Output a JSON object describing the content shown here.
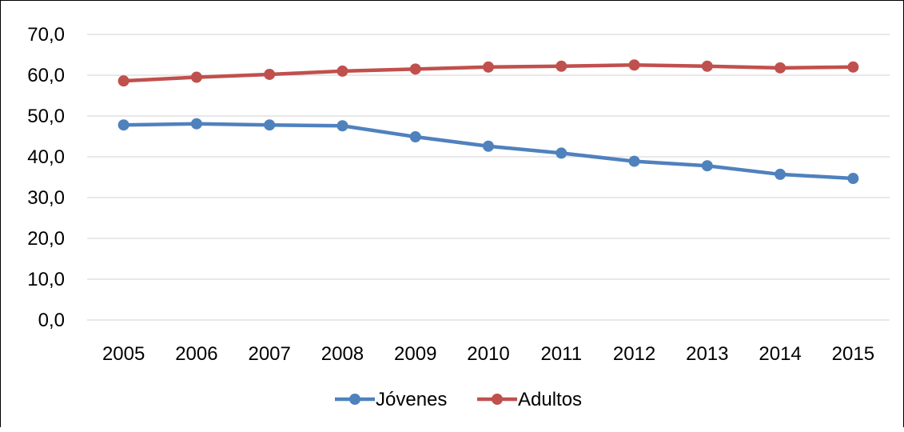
{
  "chart_data": {
    "type": "line",
    "categories": [
      "2005",
      "2006",
      "2007",
      "2008",
      "2009",
      "2010",
      "2011",
      "2012",
      "2013",
      "2014",
      "2015"
    ],
    "series": [
      {
        "name": "Jóvenes",
        "color": "#4f81bd",
        "values": [
          47.8,
          48.1,
          47.8,
          47.6,
          44.9,
          42.6,
          40.9,
          38.9,
          37.8,
          35.7,
          34.7
        ]
      },
      {
        "name": "Adultos",
        "color": "#c0504d",
        "values": [
          58.6,
          59.5,
          60.2,
          61.0,
          61.5,
          62.0,
          62.2,
          62.5,
          62.2,
          61.8,
          62.0
        ]
      }
    ],
    "yticks": [
      "0,0",
      "10,0",
      "20,0",
      "30,0",
      "40,0",
      "50,0",
      "60,0",
      "70,0"
    ],
    "ylim": [
      0,
      70
    ],
    "grid": true,
    "legend": "bottom",
    "title": "",
    "xlabel": "",
    "ylabel": ""
  }
}
